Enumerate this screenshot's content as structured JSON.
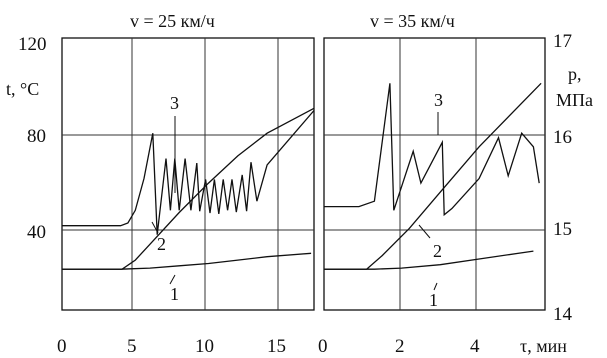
{
  "chart_data": [
    {
      "type": "line",
      "title": "v = 25 км/ч",
      "xlabel": "",
      "ylabel": "t, °C",
      "xlim": [
        0,
        17.2
      ],
      "ylim_left": [
        0,
        120
      ],
      "ylim_right": [
        14,
        17
      ],
      "x_ticks": [
        0,
        5,
        10,
        15
      ],
      "x_tick_labels": [
        "0",
        "5",
        "10",
        "15"
      ],
      "grid_x": [
        5,
        10,
        15
      ],
      "grid_y": [
        40,
        80
      ],
      "series": [
        {
          "name": "1",
          "axis": "left",
          "x": [
            0,
            4,
            6,
            8,
            10,
            12,
            14,
            17
          ],
          "y": [
            18,
            18,
            18.5,
            19.5,
            20.5,
            22,
            23.5,
            25
          ]
        },
        {
          "name": "2",
          "axis": "left",
          "x": [
            0,
            4.1,
            5,
            6,
            8,
            10,
            12,
            14,
            17.2
          ],
          "y": [
            18,
            18,
            22,
            29,
            43,
            56,
            68,
            78,
            89
          ]
        },
        {
          "name": "3",
          "axis": "right",
          "x": [
            0,
            4,
            4.5,
            5,
            5.6,
            6.2,
            6.5,
            7.1,
            7.4,
            7.7,
            8,
            8.4,
            8.8,
            9.2,
            9.4,
            9.8,
            10.1,
            10.4,
            10.7,
            11,
            11.3,
            11.6,
            11.9,
            12.3,
            12.6,
            12.9,
            13.3,
            14,
            17.2
          ],
          "y": [
            14.93,
            14.93,
            14.96,
            15.1,
            15.45,
            15.95,
            14.83,
            15.67,
            15.1,
            15.67,
            15.1,
            15.67,
            15.1,
            15.62,
            15.09,
            15.44,
            15.07,
            15.44,
            15.06,
            15.44,
            15.1,
            15.44,
            15.08,
            15.49,
            15.09,
            15.63,
            15.2,
            15.6,
            16.2
          ]
        }
      ],
      "curve_labels": [
        {
          "text": "1",
          "series": "1"
        },
        {
          "text": "2",
          "series": "2"
        },
        {
          "text": "3",
          "series": "3"
        }
      ]
    },
    {
      "type": "line",
      "title": "v = 35 км/ч",
      "xlabel": "τ, мин",
      "ylabel": "p, МПа",
      "xlim": [
        0,
        5.7
      ],
      "ylim_left": [
        0,
        120
      ],
      "ylim_right": [
        14,
        17
      ],
      "x_ticks": [
        0,
        2,
        4
      ],
      "x_tick_labels": [
        "0",
        "2",
        "4"
      ],
      "grid_x": [
        2,
        4
      ],
      "grid_y": [
        40,
        80
      ],
      "right_ticks": [
        14,
        15,
        16,
        17
      ],
      "right_tick_labels": [
        "14",
        "15",
        "16",
        "17"
      ],
      "series": [
        {
          "name": "1",
          "axis": "left",
          "x": [
            0,
            1.3,
            2,
            3,
            4,
            5.4
          ],
          "y": [
            18,
            18,
            18.5,
            20,
            22.5,
            26
          ]
        },
        {
          "name": "2",
          "axis": "left",
          "x": [
            0,
            1.1,
            1.5,
            2.2,
            3,
            4,
            5.6
          ],
          "y": [
            18,
            18,
            24,
            36,
            52,
            72,
            100
          ]
        },
        {
          "name": "3",
          "axis": "right",
          "x": [
            0,
            0.9,
            1.3,
            1.7,
            1.8,
            2.3,
            2.5,
            3.05,
            3.1,
            3.3,
            4,
            4.5,
            4.75,
            5.1,
            5.4,
            5.55
          ],
          "y": [
            15.14,
            15.14,
            15.2,
            16.5,
            15.1,
            15.75,
            15.4,
            15.85,
            15.05,
            15.12,
            15.45,
            15.9,
            15.48,
            15.95,
            15.8,
            15.4
          ]
        }
      ],
      "curve_labels": [
        {
          "text": "1",
          "series": "1"
        },
        {
          "text": "2",
          "series": "2"
        },
        {
          "text": "3",
          "series": "3"
        }
      ]
    }
  ],
  "left_axis": {
    "unit_label_1": "t, °C",
    "ticks": [
      "120",
      "80",
      "40"
    ]
  },
  "right_axis": {
    "unit_label_1": "p,",
    "unit_label_2": "МПа",
    "ticks": [
      "17",
      "16",
      "15",
      "14"
    ]
  },
  "x_axis_unit": "τ, мин"
}
